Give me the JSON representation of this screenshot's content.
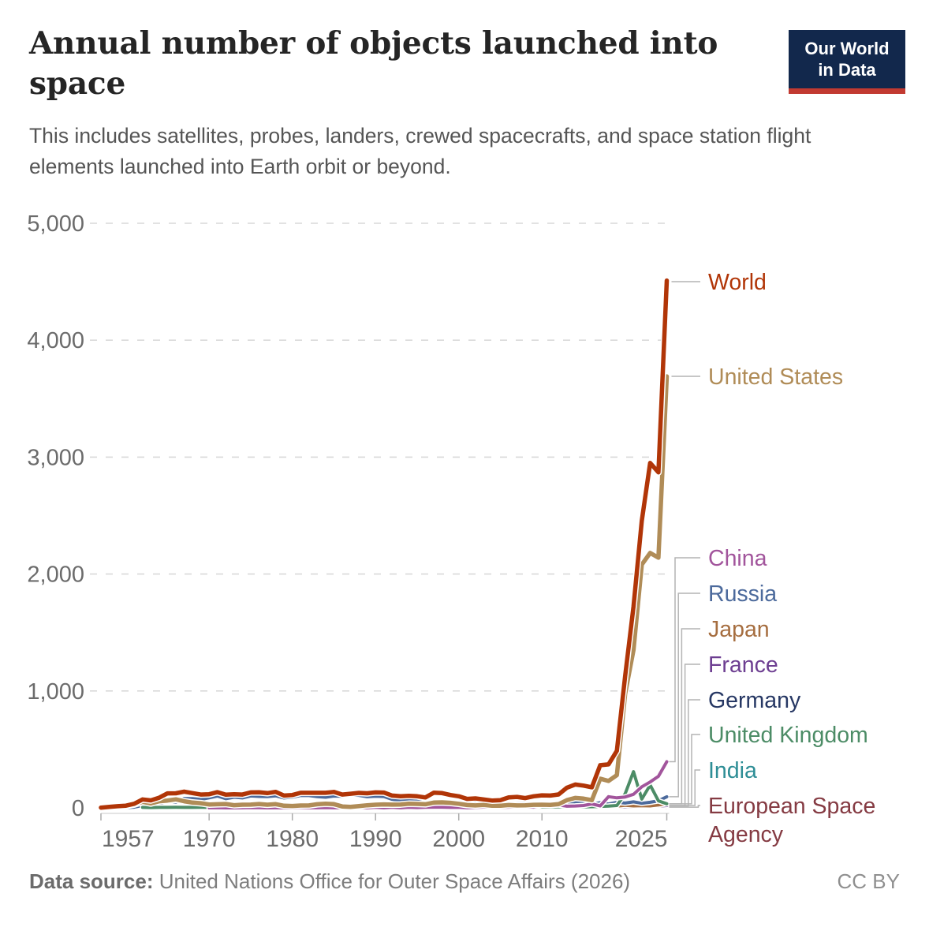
{
  "header": {
    "title": "Annual number of objects launched into space",
    "subtitle": "This includes satellites, probes, landers, crewed spacecrafts, and space station flight elements launched into Earth orbit or beyond.",
    "logo": {
      "line1": "Our World",
      "line2": "in Data"
    }
  },
  "footer": {
    "source_label": "Data source:",
    "source_text": "United Nations Office for Outer Space Affairs (2026)",
    "license": "CC BY"
  },
  "chart_data": {
    "type": "line",
    "title": "Annual number of objects launched into space",
    "xlabel": "",
    "ylabel": "",
    "ylim": [
      0,
      5000
    ],
    "y_ticks": [
      0,
      1000,
      2000,
      3000,
      4000,
      5000
    ],
    "y_tick_labels": [
      "0",
      "1,000",
      "2,000",
      "3,000",
      "4,000",
      "5,000"
    ],
    "x_range": [
      1957,
      2025
    ],
    "x_ticks": [
      1957,
      1970,
      1980,
      1990,
      2000,
      2010,
      2025
    ],
    "x_tick_labels": [
      "1957",
      "1970",
      "1980",
      "1990",
      "2000",
      "2010",
      "2025"
    ],
    "grid": "horizontal dashed",
    "legend_position": "right, labels connected to line ends by leader lines",
    "series": [
      {
        "name": "World",
        "color": "#B13507",
        "start_year": 1957,
        "values": [
          2,
          8,
          14,
          19,
          35,
          72,
          64,
          87,
          124,
          125,
          139,
          126,
          114,
          117,
          134,
          113,
          116,
          114,
          132,
          133,
          126,
          137,
          105,
          110,
          129,
          129,
          129,
          129,
          136,
          114,
          121,
          128,
          125,
          132,
          131,
          105,
          100,
          103,
          99,
          89,
          130,
          126,
          110,
          99,
          77,
          81,
          72,
          63,
          66,
          89,
          94,
          84,
          99,
          107,
          105,
          115,
          173,
          200,
          190,
          176,
          365,
          372,
          488,
          1127,
          1721,
          2455,
          2950,
          2870,
          4510
        ]
      },
      {
        "name": "United States",
        "color": "#B08C57",
        "start_year": 1957,
        "values": [
          1,
          7,
          11,
          16,
          29,
          52,
          38,
          57,
          63,
          73,
          57,
          45,
          40,
          29,
          31,
          33,
          23,
          27,
          28,
          33,
          27,
          32,
          18,
          16,
          20,
          21,
          31,
          35,
          32,
          12,
          9,
          15,
          22,
          27,
          30,
          28,
          29,
          35,
          34,
          31,
          45,
          47,
          43,
          35,
          24,
          21,
          25,
          19,
          18,
          24,
          21,
          22,
          26,
          27,
          25,
          32,
          66,
          85,
          79,
          66,
          250,
          230,
          280,
          975,
          1350,
          2080,
          2180,
          2140,
          3690
        ]
      },
      {
        "name": "China",
        "color": "#A2559C",
        "start_year": 1970,
        "values": [
          1,
          2,
          0,
          0,
          1,
          3,
          2,
          0,
          1,
          0,
          0,
          3,
          1,
          1,
          3,
          1,
          2,
          2,
          4,
          1,
          5,
          1,
          5,
          1,
          5,
          3,
          5,
          6,
          6,
          4,
          5,
          1,
          4,
          7,
          10,
          5,
          6,
          10,
          11,
          6,
          20,
          21,
          25,
          14,
          16,
          20,
          34,
          17,
          96,
          86,
          93,
          116,
          180,
          221,
          270,
          395
        ]
      },
      {
        "name": "Russia",
        "color": "#4C6A9C",
        "start_year": 1957,
        "values": [
          1,
          1,
          3,
          3,
          6,
          20,
          24,
          30,
          61,
          50,
          80,
          79,
          72,
          86,
          101,
          78,
          91,
          85,
          102,
          98,
          96,
          103,
          85,
          92,
          106,
          105,
          96,
          91,
          101,
          99,
          109,
          107,
          95,
          100,
          97,
          73,
          63,
          64,
          57,
          40,
          54,
          44,
          38,
          49,
          35,
          40,
          33,
          30,
          31,
          34,
          36,
          37,
          37,
          39,
          36,
          34,
          46,
          50,
          41,
          30,
          45,
          33,
          47,
          41,
          51,
          39,
          48,
          60,
          95
        ]
      },
      {
        "name": "Japan",
        "color": "#A66E40",
        "start_year": 1970,
        "values": [
          1,
          2,
          1,
          1,
          2,
          2,
          2,
          3,
          3,
          2,
          2,
          3,
          2,
          3,
          5,
          4,
          5,
          6,
          4,
          6,
          7,
          4,
          4,
          4,
          5,
          5,
          4,
          5,
          5,
          6,
          8,
          4,
          5,
          3,
          2,
          4,
          6,
          4,
          4,
          5,
          7,
          6,
          8,
          8,
          15,
          14,
          11,
          10,
          13,
          15,
          22,
          17,
          18,
          17,
          25,
          35
        ]
      },
      {
        "name": "France",
        "color": "#6D3E91",
        "start_year": 1965,
        "values": [
          1,
          1,
          2,
          0,
          1,
          2,
          2,
          1,
          2,
          1,
          3,
          2,
          1,
          2,
          2,
          3,
          2,
          2,
          2,
          3,
          4,
          2,
          3,
          2,
          3,
          5,
          3,
          4,
          3,
          4,
          4,
          3,
          3,
          4,
          5,
          4,
          3,
          4,
          2,
          3,
          3,
          2,
          3,
          4,
          5,
          6,
          4,
          5,
          6,
          4,
          5,
          7,
          9,
          6,
          8,
          10,
          9,
          12,
          14,
          16,
          20
        ]
      },
      {
        "name": "Germany",
        "color": "#273864",
        "start_year": 1969,
        "values": [
          1,
          1,
          2,
          1,
          1,
          2,
          1,
          2,
          1,
          1,
          2,
          1,
          2,
          1,
          2,
          3,
          2,
          1,
          2,
          3,
          2,
          3,
          2,
          3,
          2,
          3,
          3,
          2,
          3,
          4,
          3,
          4,
          2,
          3,
          3,
          2,
          3,
          4,
          3,
          5,
          4,
          5,
          6,
          5,
          8,
          6,
          7,
          9,
          8,
          10,
          12,
          10,
          14,
          12,
          15,
          13,
          16
        ]
      },
      {
        "name": "United Kingdom",
        "color": "#4C8C66",
        "start_year": 1962,
        "values": [
          4,
          3,
          4,
          4,
          5,
          4,
          4,
          5,
          4,
          2,
          2,
          1,
          2,
          1,
          1,
          2,
          1,
          2,
          1,
          2,
          2,
          1,
          2,
          1,
          2,
          2,
          3,
          2,
          2,
          1,
          2,
          2,
          3,
          2,
          3,
          2,
          3,
          4,
          3,
          2,
          3,
          4,
          3,
          4,
          5,
          4,
          6,
          5,
          7,
          8,
          10,
          9,
          12,
          8,
          10,
          12,
          15,
          20,
          120,
          310,
          75,
          195,
          60,
          35
        ]
      },
      {
        "name": "India",
        "color": "#2E8E96",
        "start_year": 1975,
        "values": [
          1,
          0,
          1,
          1,
          2,
          1,
          1,
          1,
          2,
          1,
          2,
          1,
          2,
          1,
          2,
          2,
          1,
          2,
          2,
          3,
          2,
          3,
          4,
          3,
          4,
          5,
          4,
          3,
          5,
          4,
          6,
          5,
          7,
          8,
          6,
          10,
          8,
          12,
          10,
          14,
          17,
          22,
          31,
          16,
          33,
          12,
          18,
          22,
          28,
          16,
          20
        ]
      },
      {
        "name": "European Space Agency",
        "color": "#853B43",
        "start_year": 1968,
        "values": [
          1,
          0,
          1,
          0,
          1,
          1,
          0,
          1,
          1,
          0,
          1,
          1,
          1,
          0,
          1,
          1,
          2,
          1,
          1,
          2,
          1,
          2,
          2,
          1,
          2,
          2,
          1,
          2,
          3,
          2,
          2,
          3,
          2,
          3,
          2,
          2,
          3,
          2,
          3,
          3,
          2,
          4,
          3,
          4,
          3,
          4,
          5,
          4,
          5,
          4,
          6,
          5,
          7,
          6,
          8,
          7,
          9,
          6
        ]
      }
    ]
  }
}
